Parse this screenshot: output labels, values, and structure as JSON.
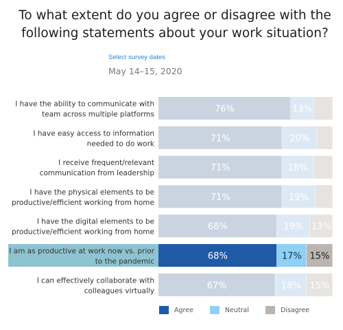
{
  "title_line1": "To what extent do you agree or disagree with the",
  "title_line2": "following statements about your work situation?",
  "select_label": "Select survey dates",
  "date_range": "May 14–15, 2020",
  "colors": {
    "agree_muted": "#c9d4e0",
    "neutral_muted": "#dce9f4",
    "disagree_muted": "#e6e3e1",
    "agree_active": "#1f5aa6",
    "neutral_active": "#8fd0f5",
    "disagree_active": "#bbb4af",
    "highlight_row": "#8ec3d1"
  },
  "chart_data": {
    "type": "bar",
    "orientation": "horizontal",
    "stacked": true,
    "highlighted_index": 5,
    "categories": [
      [
        "I have the ability to communicate with",
        "team across multiple platforms"
      ],
      [
        "I have easy access to information",
        "needed to do work"
      ],
      [
        "I receive frequent/relevant",
        "communication from leadership"
      ],
      [
        "I have the physical elements to be",
        "productive/efficient working from home"
      ],
      [
        "I have the digital elements to be",
        "productive/efficient working from home"
      ],
      [
        "I am as productive at work now vs. prior",
        "to the pandemic"
      ],
      [
        "I can effectively collaborate with",
        "colleagues virtually"
      ]
    ],
    "series": [
      {
        "name": "Agree",
        "values": [
          76,
          71,
          71,
          71,
          68,
          68,
          67
        ],
        "labels": [
          "76%",
          "71%",
          "71%",
          "71%",
          "68%",
          "68%",
          "67%"
        ]
      },
      {
        "name": "Neutral",
        "values": [
          13,
          20,
          18,
          19,
          19,
          17,
          18
        ],
        "labels": [
          "13%",
          "20%",
          "18%",
          "19%",
          "19%",
          "17%",
          "18%"
        ]
      },
      {
        "name": "Disagree",
        "values": [
          11,
          9,
          11,
          10,
          13,
          15,
          15
        ],
        "labels": [
          "",
          "",
          "",
          "",
          "13%",
          "15%",
          "15%"
        ]
      }
    ],
    "xlim": [
      0,
      100
    ],
    "legend_position": "bottom"
  }
}
